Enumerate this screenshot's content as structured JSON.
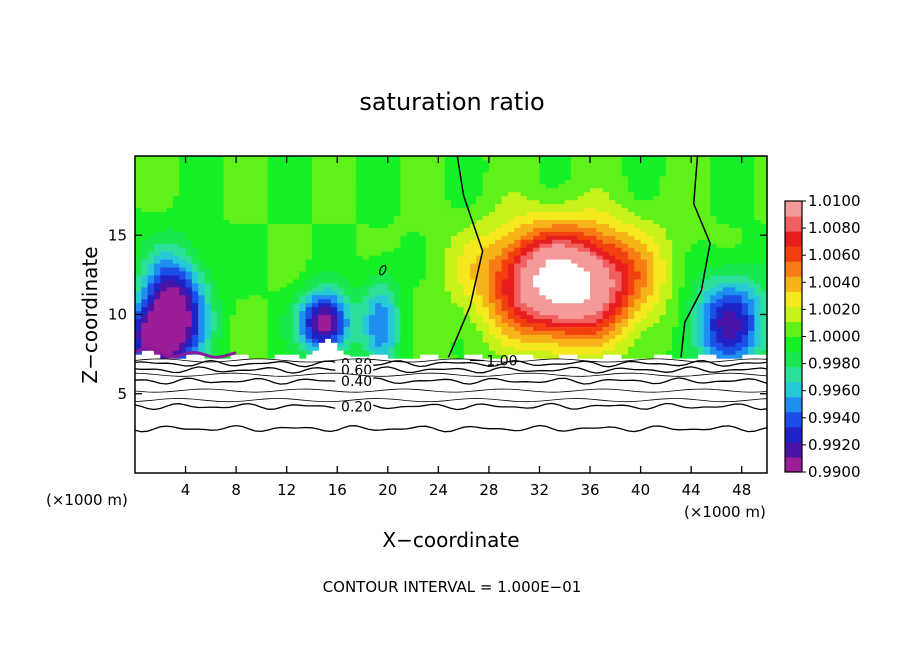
{
  "chart_data": {
    "type": "heatmap",
    "title": "saturation ratio",
    "xlabel": "X−coordinate",
    "ylabel": "Z−coordinate",
    "x_unit_left": "(×1000 m)",
    "x_unit_right": "(×1000 m)",
    "footer": "CONTOUR INTERVAL = 1.000E−01",
    "xlim": [
      0,
      50
    ],
    "ylim": [
      0,
      20
    ],
    "x_ticks": [
      4,
      8,
      12,
      16,
      20,
      24,
      28,
      32,
      36,
      40,
      44,
      48
    ],
    "y_ticks": [
      5,
      10,
      15
    ],
    "colorbar": {
      "ticks": [
        "1.0100",
        "1.0080",
        "1.0060",
        "1.0040",
        "1.0020",
        "1.0000",
        "0.9980",
        "0.9960",
        "0.9940",
        "0.9920",
        "0.9900"
      ],
      "min": 0.99,
      "max": 1.01,
      "colors": [
        "#9c1c99",
        "#4a14a8",
        "#1f22c4",
        "#1a4ee6",
        "#1e8ff0",
        "#27c9d8",
        "#2ce09a",
        "#19e84e",
        "#16f026",
        "#5ff21a",
        "#c6f21a",
        "#f5e81c",
        "#f7b418",
        "#f77c14",
        "#f2400f",
        "#e81e1e",
        "#f06060",
        "#f59a9a"
      ]
    },
    "field_features": [
      {
        "kind": "dry",
        "x": 3,
        "z": 10,
        "sx": 2.5,
        "sz": 3.5,
        "amp": -0.011
      },
      {
        "kind": "dry",
        "x": 1,
        "z": 8.5,
        "sx": 2,
        "sz": 2,
        "amp": -0.006
      },
      {
        "kind": "dry",
        "x": 15,
        "z": 9.5,
        "sx": 2,
        "sz": 2,
        "amp": -0.01
      },
      {
        "kind": "dry",
        "x": 19.5,
        "z": 9.5,
        "sx": 1.5,
        "sz": 3,
        "amp": -0.005
      },
      {
        "kind": "dry",
        "x": 47,
        "z": 9.5,
        "sx": 3,
        "sz": 3,
        "amp": -0.008
      },
      {
        "kind": "moist",
        "x": 34,
        "z": 11.5,
        "sx": 5.5,
        "sz": 3.2,
        "amp": 0.011
      },
      {
        "kind": "moist",
        "x": 34,
        "z": 13.5,
        "sx": 7,
        "sz": 3,
        "amp": 0.004
      }
    ],
    "contours_1_00": [
      {
        "label": "1.00",
        "points": [
          [
            25.5,
            20
          ],
          [
            26,
            17.5
          ],
          [
            27.5,
            14
          ],
          [
            26.5,
            10.5
          ],
          [
            24.8,
            7.3
          ]
        ]
      },
      {
        "label": "",
        "points": [
          [
            44.5,
            20
          ],
          [
            44.2,
            17
          ],
          [
            45.5,
            14.5
          ],
          [
            44.8,
            11.5
          ],
          [
            43.5,
            9.5
          ],
          [
            43.2,
            7.3
          ]
        ]
      }
    ],
    "lower_contour_levels": [
      {
        "label": "0.80",
        "z": 6.9
      },
      {
        "label": "0.60",
        "z": 6.5
      },
      {
        "label": "0.40",
        "z": 5.8
      },
      {
        "label": "0.20",
        "z": 4.2
      },
      {
        "label": "",
        "z": 2.8
      }
    ]
  }
}
